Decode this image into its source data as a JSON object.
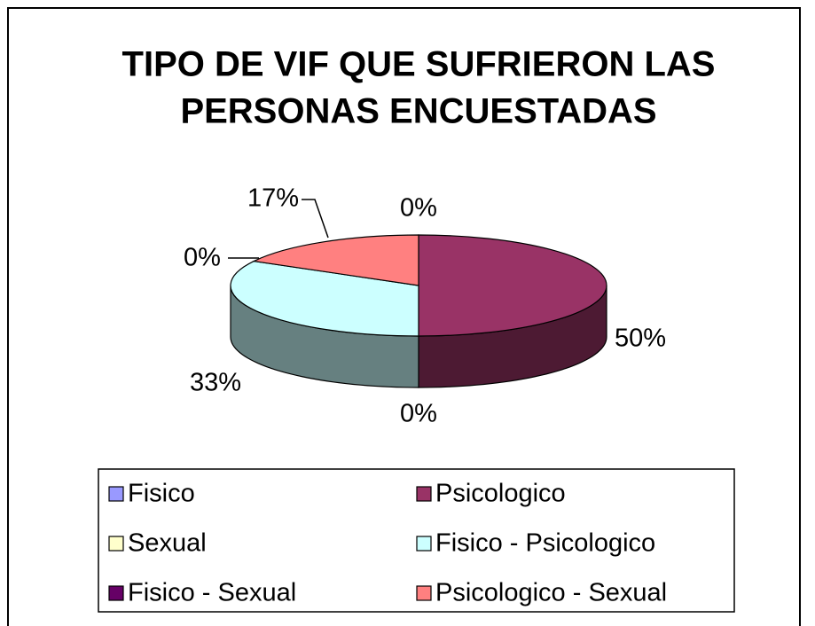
{
  "chart_data": {
    "type": "pie",
    "title": [
      "TIPO DE VIF QUE SUFRIERON LAS",
      "PERSONAS ENCUESTADAS"
    ],
    "categories": [
      "Fisico",
      "Psicologico",
      "Sexual",
      "Fisico - Psicologico",
      "Fisico - Sexual",
      "Psicologico - Sexual"
    ],
    "values": [
      0,
      50,
      0,
      33,
      0,
      17
    ],
    "value_labels": [
      "0%",
      "50%",
      "0%",
      "33%",
      "0%",
      "17%"
    ],
    "colors": [
      "#9999ff",
      "#993366",
      "#ffffcc",
      "#ccffff",
      "#660066",
      "#ff8080"
    ],
    "three_d": true,
    "legend": "bottom"
  }
}
